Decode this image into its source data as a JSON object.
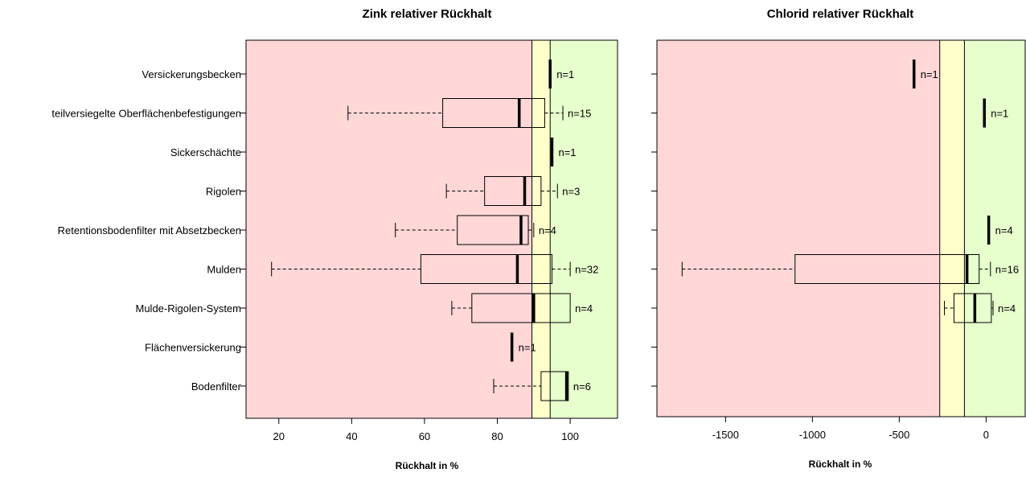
{
  "chart_data": [
    {
      "type": "boxplot",
      "orientation": "horizontal",
      "title": "Zink relativer Rückhalt",
      "xlabel": "Rückhalt in %",
      "xlim": [
        11,
        113
      ],
      "xticks": [
        20,
        40,
        60,
        80,
        100
      ],
      "zones": [
        {
          "from": 11,
          "to": 89.5,
          "color": "#ffd7d7"
        },
        {
          "from": 89.5,
          "to": 94.5,
          "color": "#ffffcc"
        },
        {
          "from": 94.5,
          "to": 113,
          "color": "#e6ffcc"
        }
      ],
      "zone_lines": [
        89.5,
        94.5
      ],
      "categories": [
        "Versickerungsbecken",
        "teilversiegelte Oberflächenbefestigungen",
        "Sickerschächte",
        "Rigolen",
        "Retentionsbodenfilter mit Absetzbecken",
        "Mulden",
        "Mulde-Rigolen-System",
        "Flächenversickerung",
        "Bodenfilter"
      ],
      "boxes": [
        {
          "min": 94.5,
          "q1": 94.5,
          "median": 94.5,
          "q3": 94.5,
          "max": 94.5,
          "n_label": "n=1"
        },
        {
          "min": 39,
          "q1": 65,
          "median": 86,
          "q3": 93,
          "max": 98,
          "n_label": "n=15"
        },
        {
          "min": 95,
          "q1": 95,
          "median": 95,
          "q3": 95,
          "max": 95,
          "n_label": "n=1"
        },
        {
          "min": 66,
          "q1": 76.5,
          "median": 87.5,
          "q3": 92,
          "max": 96.5,
          "n_label": "n=3"
        },
        {
          "min": 52,
          "q1": 69,
          "median": 86.5,
          "q3": 88.5,
          "max": 90,
          "n_label": "n=4"
        },
        {
          "min": 18,
          "q1": 59,
          "median": 85.5,
          "q3": 95,
          "max": 100,
          "n_label": "n=32"
        },
        {
          "min": 67.5,
          "q1": 73,
          "median": 90,
          "q3": 100,
          "max": 100,
          "n_label": "n=4"
        },
        {
          "min": 84,
          "q1": 84,
          "median": 84,
          "q3": 84,
          "max": 84,
          "n_label": "n=1"
        },
        {
          "min": 79,
          "q1": 92,
          "median": 99,
          "q3": 99.5,
          "max": 99.5,
          "n_label": "n=6"
        }
      ]
    },
    {
      "type": "boxplot",
      "orientation": "horizontal",
      "title": "Chlorid relativer Rückhalt",
      "xlabel": "Rückhalt in %",
      "xlim": [
        -1895,
        225
      ],
      "xticks": [
        -1500,
        -1000,
        -500,
        0
      ],
      "zones": [
        {
          "from": -1895,
          "to": -267,
          "color": "#ffd7d7"
        },
        {
          "from": -267,
          "to": -125,
          "color": "#ffffcc"
        },
        {
          "from": -125,
          "to": 225,
          "color": "#e6ffcc"
        }
      ],
      "zone_lines": [
        -267,
        -125
      ],
      "categories": [
        "Versickerungsbecken",
        "teilversiegelte Oberflächenbefestigungen",
        "Sickerschächte",
        "Rigolen",
        "Retentionsbodenfilter mit Absetzbecken",
        "Mulden",
        "Mulde-Rigolen-System",
        "Flächenversickerung",
        "Bodenfilter"
      ],
      "boxes": [
        {
          "min": -415,
          "q1": -415,
          "median": -415,
          "q3": -415,
          "max": -415,
          "n_label": "n=1"
        },
        {
          "min": -10,
          "q1": -10,
          "median": -10,
          "q3": -10,
          "max": -10,
          "n_label": "n=1"
        },
        null,
        null,
        {
          "min": 15,
          "q1": 15,
          "median": 15,
          "q3": 15,
          "max": 15,
          "n_label": "n=4"
        },
        {
          "min": -1750,
          "q1": -1100,
          "median": -110,
          "q3": -40,
          "max": 25,
          "n_label": "n=16"
        },
        {
          "min": -240,
          "q1": -185,
          "median": -65,
          "q3": 30,
          "max": 40,
          "n_label": "n=4"
        },
        null,
        null
      ]
    }
  ]
}
